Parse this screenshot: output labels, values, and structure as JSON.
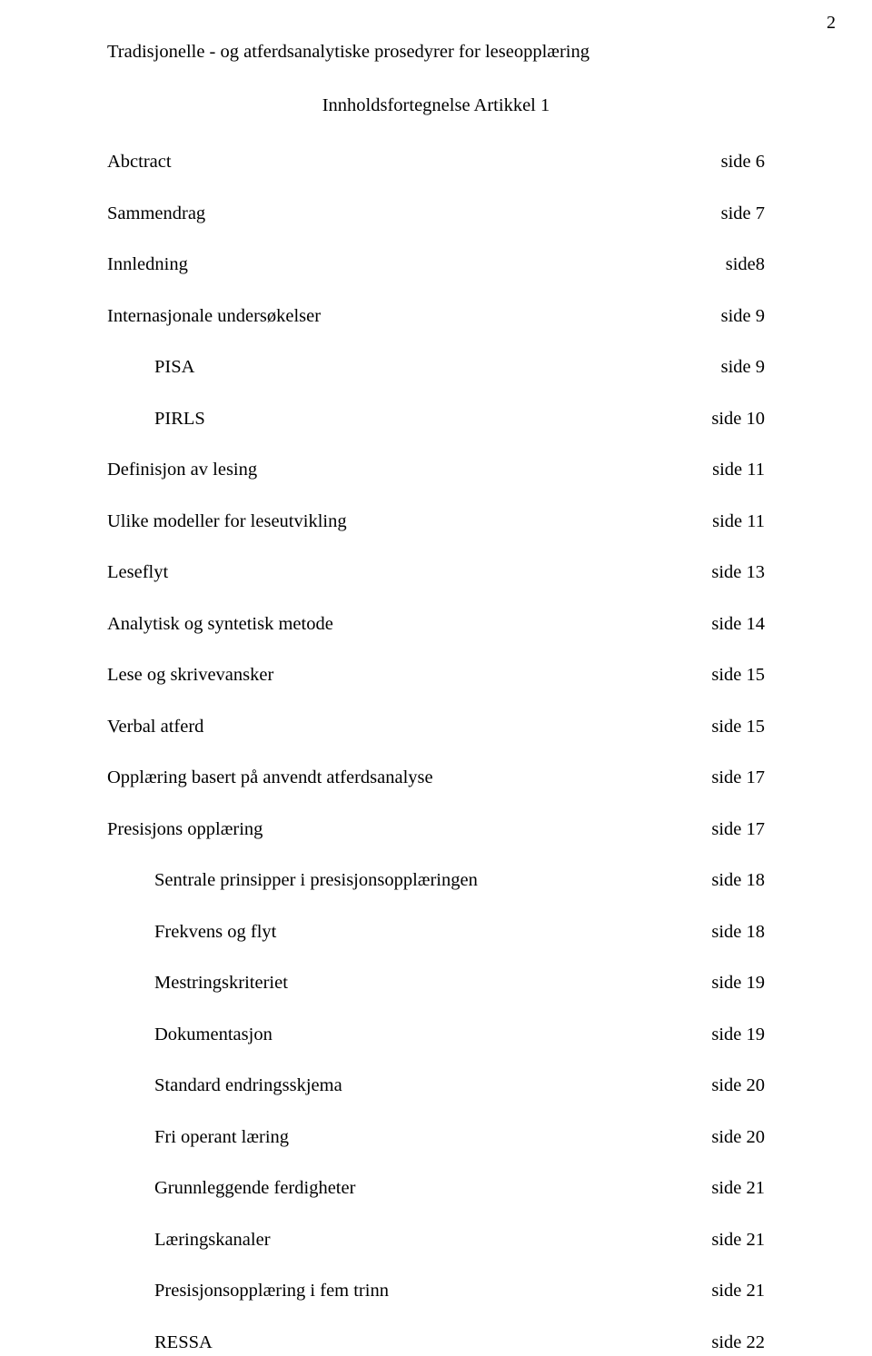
{
  "page_number": "2",
  "running_head": "Tradisjonelle - og atferdsanalytiske prosedyrer for leseopplæring",
  "centered_title": "Innholdsfortegnelse Artikkel 1",
  "toc": [
    {
      "label": "Abctract",
      "page": "side 6",
      "indent": 0
    },
    {
      "label": "Sammendrag",
      "page": "side 7",
      "indent": 0
    },
    {
      "label": "Innledning",
      "page": "side8",
      "indent": 0
    },
    {
      "label": "Internasjonale undersøkelser",
      "page": "side 9",
      "indent": 0
    },
    {
      "label": "PISA",
      "page": "side 9",
      "indent": 1
    },
    {
      "label": "PIRLS",
      "page": "side 10",
      "indent": 1
    },
    {
      "label": "Definisjon av lesing",
      "page": "side 11",
      "indent": 0
    },
    {
      "label": "Ulike modeller for leseutvikling",
      "page": "side 11",
      "indent": 0
    },
    {
      "label": "Leseflyt",
      "page": "side 13",
      "indent": 0
    },
    {
      "label": "Analytisk og syntetisk metode",
      "page": "side 14",
      "indent": 0
    },
    {
      "label": "Lese og skrivevansker",
      "page": "side 15",
      "indent": 0
    },
    {
      "label": "Verbal atferd",
      "page": "side 15",
      "indent": 0
    },
    {
      "label": "Opplæring basert på anvendt atferdsanalyse",
      "page": "side 17",
      "indent": 0
    },
    {
      "label": "Presisjons opplæring",
      "page": "side 17",
      "indent": 0
    },
    {
      "label": "Sentrale prinsipper i presisjonsopplæringen",
      "page": "side 18",
      "indent": 1
    },
    {
      "label": "Frekvens og flyt",
      "page": "side 18",
      "indent": 1
    },
    {
      "label": "Mestringskriteriet",
      "page": "side 19",
      "indent": 1
    },
    {
      "label": "Dokumentasjon",
      "page": "side 19",
      "indent": 1
    },
    {
      "label": "Standard endringsskjema",
      "page": "side 20",
      "indent": 1
    },
    {
      "label": "Fri operant læring",
      "page": "side 20",
      "indent": 1
    },
    {
      "label": "Grunnleggende ferdigheter",
      "page": "side 21",
      "indent": 1
    },
    {
      "label": "Læringskanaler",
      "page": "side 21",
      "indent": 1
    },
    {
      "label": "Presisjonsopplæring i fem trinn",
      "page": "side 21",
      "indent": 1
    },
    {
      "label": "RESSA",
      "page": "side 22",
      "indent": 1
    }
  ]
}
